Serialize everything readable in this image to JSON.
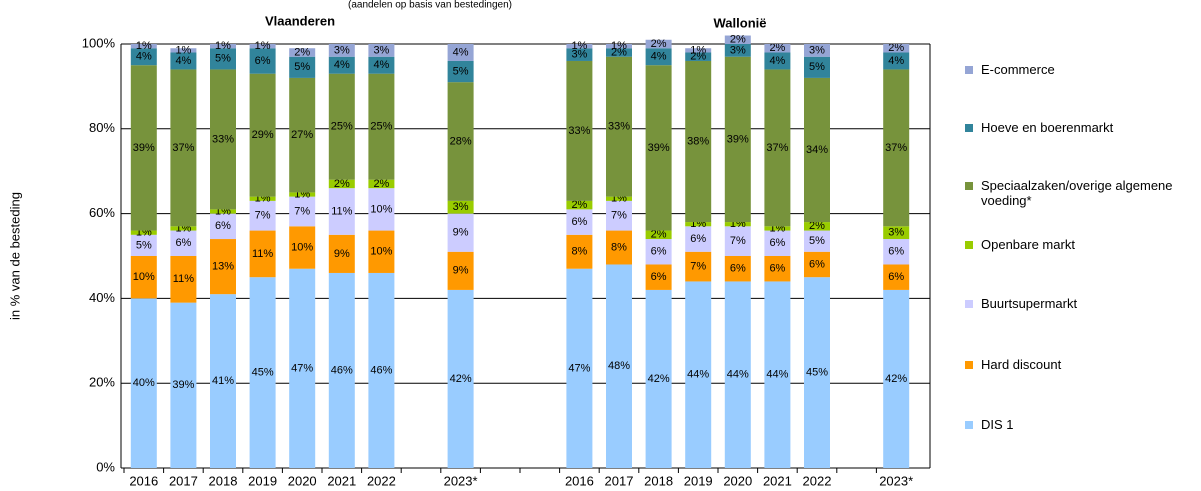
{
  "chart_data": {
    "type": "stacked-bar",
    "subtitle": "(aandelen op basis van bestedingen)",
    "group_labels": [
      "Vlaanderen",
      "Wallonië"
    ],
    "ylabel": "in % van de besteding",
    "categories": [
      "2016",
      "2017",
      "2018",
      "2019",
      "2020",
      "2021",
      "2022",
      null,
      "2023*",
      null,
      null,
      "2016",
      "2017",
      "2018",
      "2019",
      "2020",
      "2021",
      "2022",
      null,
      "2023*"
    ],
    "ylim": [
      0,
      100
    ],
    "yticks": [
      {
        "value": 0,
        "label": "0%"
      },
      {
        "value": 20,
        "label": "20%"
      },
      {
        "value": 40,
        "label": "40%"
      },
      {
        "value": 60,
        "label": "60%"
      },
      {
        "value": 80,
        "label": "80%"
      },
      {
        "value": 100,
        "label": "100%"
      }
    ],
    "grid": true,
    "legend": "right",
    "series": [
      {
        "name": "DIS 1",
        "color": "#99ccff",
        "values": [
          40,
          39,
          41,
          45,
          47,
          46,
          46,
          null,
          42,
          null,
          null,
          47,
          48,
          42,
          44,
          44,
          44,
          45,
          null,
          42
        ],
        "value_labels": [
          "40%",
          "39%",
          "41%",
          "45%",
          "47%",
          "46%",
          "46%",
          null,
          "42%",
          null,
          null,
          "47%",
          "48%",
          "42%",
          "44%",
          "44%",
          "44%",
          "45%",
          null,
          "42%"
        ]
      },
      {
        "name": "Hard discount",
        "color": "#ff9900",
        "values": [
          10,
          11,
          13,
          11,
          10,
          9,
          10,
          null,
          9,
          null,
          null,
          8,
          8,
          6,
          7,
          6,
          6,
          6,
          null,
          6
        ],
        "value_labels": [
          "10%",
          "11%",
          "13%",
          "11%",
          "10%",
          "9%",
          "10%",
          null,
          "9%",
          null,
          null,
          "8%",
          "8%",
          "6%",
          "7%",
          "6%",
          "6%",
          "6%",
          null,
          "6%"
        ]
      },
      {
        "name": "Buurtsupermarkt",
        "color": "#ccccff",
        "values": [
          5,
          6,
          6,
          7,
          7,
          11,
          10,
          null,
          9,
          null,
          null,
          6,
          7,
          6,
          6,
          7,
          6,
          5,
          null,
          6
        ],
        "value_labels": [
          "5%",
          "6%",
          "6%",
          "7%",
          "7%",
          "11%",
          "10%",
          null,
          "9%",
          null,
          null,
          "6%",
          "7%",
          "6%",
          "6%",
          "7%",
          "6%",
          "5%",
          null,
          "6%"
        ]
      },
      {
        "name": "Openbare markt",
        "color": "#99cc00",
        "values": [
          1,
          1,
          1,
          1,
          1,
          2,
          2,
          null,
          3,
          null,
          null,
          2,
          1,
          2,
          1,
          1,
          1,
          2,
          null,
          3
        ],
        "value_labels": [
          "1%",
          "1%",
          "1%",
          "1%",
          "1%",
          "2%",
          "2%",
          null,
          "3%",
          null,
          null,
          "2%",
          "1%",
          "2%",
          "1%",
          "1%",
          "1%",
          "2%",
          null,
          "3%"
        ]
      },
      {
        "name": "Speciaalzaken/overige algemene voeding*",
        "color": "#77933c",
        "values": [
          39,
          37,
          33,
          29,
          27,
          25,
          25,
          null,
          28,
          null,
          null,
          33,
          33,
          39,
          38,
          39,
          37,
          34,
          null,
          37
        ],
        "value_labels": [
          "39%",
          "37%",
          "33%",
          "29%",
          "27%",
          "25%",
          "25%",
          null,
          "28%",
          null,
          null,
          "33%",
          "33%",
          "39%",
          "38%",
          "39%",
          "37%",
          "34%",
          null,
          "37%"
        ]
      },
      {
        "name": "Hoeve en boerenmarkt",
        "color": "#31849b",
        "values": [
          4,
          4,
          5,
          6,
          5,
          4,
          4,
          null,
          5,
          null,
          null,
          3,
          2,
          4,
          2,
          3,
          4,
          5,
          null,
          4
        ],
        "value_labels": [
          "4%",
          "4%",
          "5%",
          "6%",
          "5%",
          "4%",
          "4%",
          null,
          "5%",
          null,
          null,
          "3%",
          "2%",
          "4%",
          "2%",
          "3%",
          "4%",
          "5%",
          null,
          "4%"
        ]
      },
      {
        "name": "E-commerce",
        "color": "#95a5d5",
        "values": [
          1,
          1,
          1,
          1,
          2,
          3,
          3,
          null,
          4,
          null,
          null,
          1,
          1,
          2,
          1,
          2,
          2,
          3,
          null,
          2
        ],
        "value_labels": [
          "1%",
          "1%",
          "1%",
          "1%",
          "2%",
          "3%",
          "3%",
          null,
          "4%",
          null,
          null,
          "1%",
          "1%",
          "2%",
          "1%",
          "2%",
          "2%",
          "3%",
          null,
          "2%"
        ]
      }
    ]
  }
}
